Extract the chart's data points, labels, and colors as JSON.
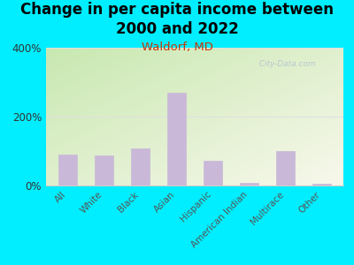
{
  "title": "Change in per capita income between\n2000 and 2022",
  "subtitle": "Waldorf, MD",
  "categories": [
    "All",
    "White",
    "Black",
    "Asian",
    "Hispanic",
    "American Indian",
    "Multirace",
    "Other"
  ],
  "values": [
    90,
    88,
    108,
    270,
    72,
    8,
    100,
    5
  ],
  "bar_color": "#c9b8d8",
  "bar_edgecolor": "#c9b8d8",
  "title_fontsize": 12,
  "subtitle_fontsize": 9.5,
  "subtitle_color": "#cc3300",
  "background_outer": "#00eeff",
  "plot_bg_top_left": "#c8e8b0",
  "plot_bg_bottom_right": "#f8f8ec",
  "ylim": [
    0,
    400
  ],
  "yticks": [
    0,
    200,
    400
  ],
  "ytick_labels": [
    "0%",
    "200%",
    "400%"
  ],
  "watermark": "  City-Data.com",
  "watermark_color": "#b0c0d0",
  "axis_label_color": "#555555",
  "grid_color": "#e0e0e0"
}
